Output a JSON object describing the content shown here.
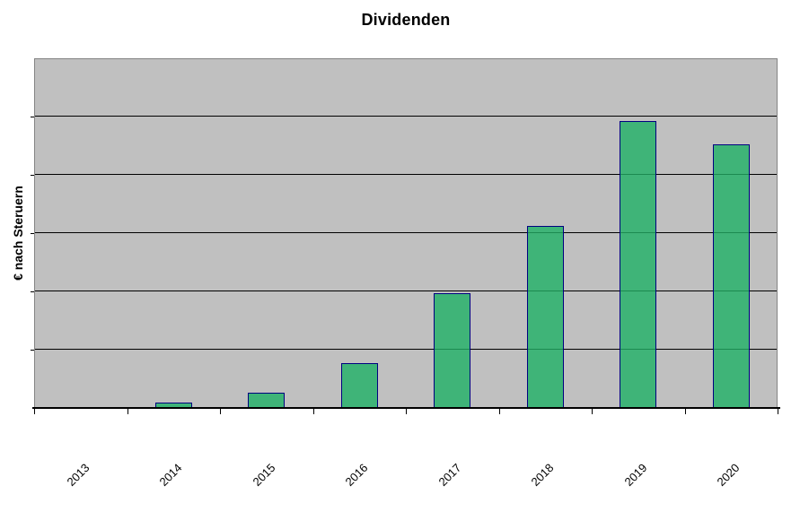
{
  "chart_data": {
    "type": "bar",
    "title": "Dividenden",
    "xlabel": "",
    "ylabel": "€ nach Steruern",
    "categories": [
      "2013",
      "2014",
      "2015",
      "2016",
      "2017",
      "2018",
      "2019",
      "2020"
    ],
    "values": [
      0,
      0.08,
      0.25,
      0.75,
      1.95,
      3.1,
      4.9,
      4.5
    ],
    "ylim": [
      0,
      6
    ],
    "y_gridline_step": 1,
    "y_tick_labels_visible": false,
    "grid": "horizontal",
    "legend": "none",
    "values_note": "relative units: 1.0 = one horizontal gridline division; no numeric y-axis labels are shown in the chart"
  },
  "colors": {
    "bar_fill": "#3fb478",
    "bar_border": "#000080",
    "bar_gridline_overlay": "#1c8a50",
    "plot_background": "#c0c0c0",
    "plot_border": "#848484",
    "gridline": "#000000",
    "axis": "#000000",
    "page_background": "#ffffff",
    "text": "#000000"
  }
}
